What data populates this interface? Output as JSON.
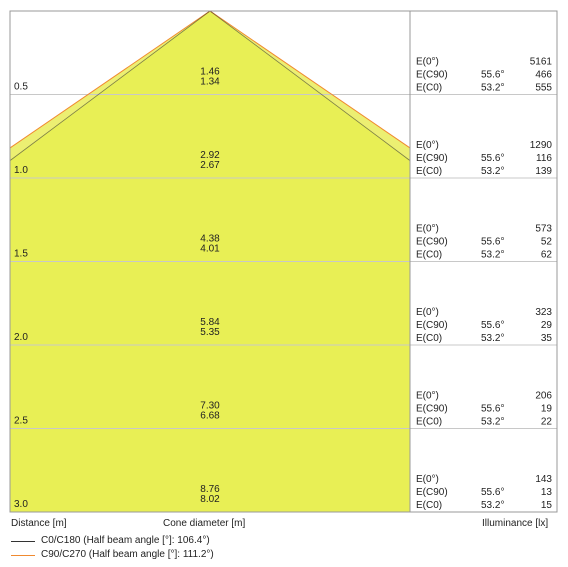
{
  "chart_data": {
    "type": "cone-diagram",
    "x_label": "Distance [m]",
    "center_label": "Cone diameter [m]",
    "right_label": "Illuminance [lx]",
    "half_beam_angles": {
      "c0_c180": 106.4,
      "c90_c270": 111.2
    },
    "rows": [
      {
        "distance": "0.5",
        "diameter_c90": "1.46",
        "diameter_c0": "1.34",
        "e0": "5161",
        "e_c90": "466",
        "e_c0": "555"
      },
      {
        "distance": "1.0",
        "diameter_c90": "2.92",
        "diameter_c0": "2.67",
        "e0": "1290",
        "e_c90": "116",
        "e_c0": "139"
      },
      {
        "distance": "1.5",
        "diameter_c90": "4.38",
        "diameter_c0": "4.01",
        "e0": "573",
        "e_c90": "52",
        "e_c0": "62"
      },
      {
        "distance": "2.0",
        "diameter_c90": "5.84",
        "diameter_c0": "5.35",
        "e0": "323",
        "e_c90": "29",
        "e_c0": "35"
      },
      {
        "distance": "2.5",
        "diameter_c90": "7.30",
        "diameter_c0": "6.68",
        "e0": "206",
        "e_c90": "19",
        "e_c0": "22"
      },
      {
        "distance": "3.0",
        "diameter_c90": "8.76",
        "diameter_c0": "8.02",
        "e0": "143",
        "e_c90": "13",
        "e_c0": "15"
      }
    ],
    "row_labels": {
      "e0": "E(0°)",
      "e_c90": "E(C90)",
      "e_c0": "E(C0)",
      "angle_c90": "55.6°",
      "angle_c0": "53.2°"
    },
    "legend": [
      {
        "label": "C0/C180 (Half beam angle [°]: 106.4°)",
        "color": "#333333"
      },
      {
        "label": "C90/C270 (Half beam angle [°]: 111.2°)",
        "color": "#f08a30"
      }
    ],
    "colors": {
      "cone_fill": "#e8ef55",
      "cone_inner_fill": "#ecef72",
      "grid": "#c8c8c8",
      "border": "#999999"
    }
  }
}
